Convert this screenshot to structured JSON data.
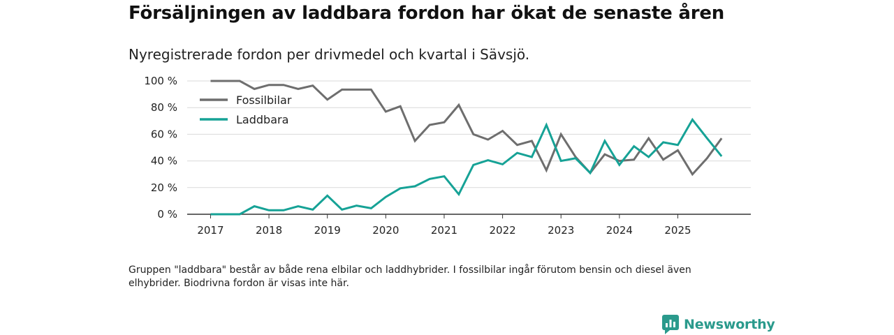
{
  "title": "Försäljningen av laddbara fordon har ökat de senaste åren",
  "subtitle": "Nyregistrerade fordon per drivmedel och kvartal i Sävsjö.",
  "footnote": "Gruppen \"laddbara\" består av både rena elbilar och laddhybrider. I fossilbilar ingår förutom bensin och diesel även elhybrider. Biodrivna fordon är visas inte här.",
  "brand": "Newsworthy",
  "chart_data": {
    "type": "line",
    "title": "Försäljningen av laddbara fordon har ökat de senaste åren",
    "xlabel": "",
    "ylabel": "",
    "ylim": [
      0,
      100
    ],
    "yticks": [
      0,
      20,
      40,
      60,
      80,
      100
    ],
    "ytick_labels": [
      "0 %",
      "20 %",
      "40 %",
      "60 %",
      "80 %",
      "100 %"
    ],
    "xticks": [
      2017,
      2018,
      2019,
      2020,
      2021,
      2022,
      2023,
      2024,
      2025
    ],
    "xtick_labels": [
      "2017",
      "2018",
      "2019",
      "2020",
      "2021",
      "2022",
      "2023",
      "2024",
      "2025"
    ],
    "x": [
      2017.0,
      2017.25,
      2017.5,
      2017.75,
      2018.0,
      2018.25,
      2018.5,
      2018.75,
      2019.0,
      2019.25,
      2019.5,
      2019.75,
      2020.0,
      2020.25,
      2020.5,
      2020.75,
      2021.0,
      2021.25,
      2021.5,
      2021.75,
      2022.0,
      2022.25,
      2022.5,
      2022.75,
      2023.0,
      2023.25,
      2023.5,
      2023.75,
      2024.0,
      2024.25,
      2024.5,
      2024.75,
      2025.0,
      2025.25,
      2025.5,
      2025.75
    ],
    "legend_position": "top-left",
    "grid": true,
    "series": [
      {
        "name": "Fossilbilar",
        "color": "#6e6e6e",
        "values": [
          100,
          100,
          100,
          94,
          97,
          97,
          94,
          96.5,
          86,
          93.5,
          93.5,
          93.5,
          77,
          81,
          55,
          67,
          69,
          82,
          60,
          56,
          62.5,
          52,
          55,
          33,
          60,
          43,
          31,
          45,
          40,
          41,
          57,
          41,
          48,
          30,
          42,
          57
        ]
      },
      {
        "name": "Laddbara",
        "color": "#16a296",
        "values": [
          0,
          0,
          0,
          6,
          3,
          3,
          6,
          3.5,
          14,
          3.5,
          6.5,
          4.5,
          13,
          19.5,
          21,
          26.5,
          28.5,
          15,
          37,
          40.5,
          37.5,
          46,
          43,
          67,
          40,
          42,
          31,
          55,
          37,
          51,
          43,
          54,
          52,
          71,
          57,
          43.5
        ]
      }
    ]
  }
}
